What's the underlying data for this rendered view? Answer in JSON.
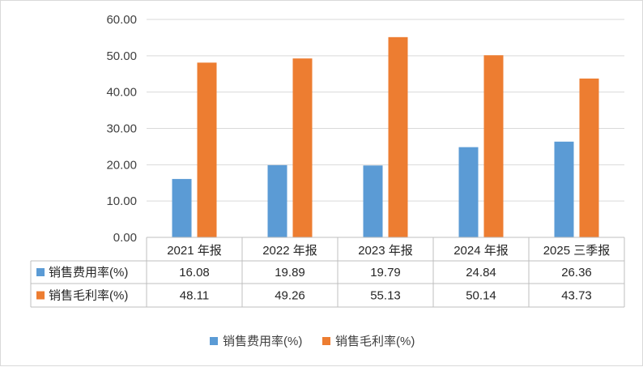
{
  "chart_data": {
    "type": "bar",
    "title": "",
    "xlabel": "",
    "ylabel": "",
    "categories": [
      "2021 年报",
      "2022 年报",
      "2023 年报",
      "2024 年报",
      "2025 三季报"
    ],
    "series": [
      {
        "name": "销售费用率(%)",
        "color": "#5b9bd5",
        "values": [
          16.08,
          19.89,
          19.79,
          24.84,
          26.36
        ]
      },
      {
        "name": "销售毛利率(%)",
        "color": "#ed7d31",
        "values": [
          48.11,
          49.26,
          55.13,
          50.14,
          43.73
        ]
      }
    ],
    "ylim": [
      0,
      60
    ],
    "yticks": [
      "0.00",
      "10.00",
      "20.00",
      "30.00",
      "40.00",
      "50.00",
      "60.00"
    ],
    "grid": true,
    "data_table": {
      "rows": [
        {
          "label": "销售费用率(%)",
          "cells": [
            "16.08",
            "19.89",
            "19.79",
            "24.84",
            "26.36"
          ]
        },
        {
          "label": "销售毛利率(%)",
          "cells": [
            "48.11",
            "49.26",
            "55.13",
            "50.14",
            "43.73"
          ]
        }
      ]
    },
    "legend": {
      "position": "bottom",
      "entries": [
        "销售费用率(%)",
        "销售毛利率(%)"
      ]
    }
  }
}
